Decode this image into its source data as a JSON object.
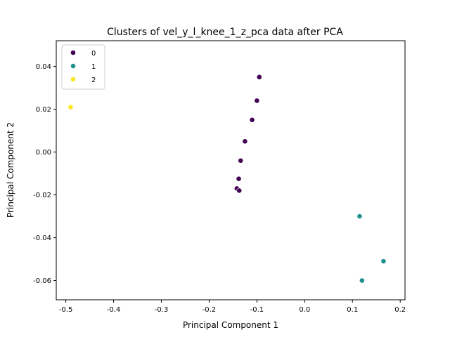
{
  "chart_data": {
    "type": "scatter",
    "title": "Clusters of vel_y_l_knee_1_z_pca data after PCA",
    "xlabel": "Principal Component 1",
    "ylabel": "Principal Component 2",
    "xlim": [
      -0.52,
      0.21
    ],
    "ylim": [
      -0.069,
      0.052
    ],
    "xticks": [
      "-0.5",
      "-0.4",
      "-0.3",
      "-0.2",
      "-0.1",
      "0.0",
      "0.1",
      "0.2"
    ],
    "xtick_values": [
      -0.5,
      -0.4,
      -0.3,
      -0.2,
      -0.1,
      0.0,
      0.1,
      0.2
    ],
    "yticks": [
      "-0.06",
      "-0.04",
      "-0.02",
      "0.00",
      "0.02",
      "0.04"
    ],
    "ytick_values": [
      -0.06,
      -0.04,
      -0.02,
      0.0,
      0.02,
      0.04
    ],
    "legend": {
      "position": "upper-left",
      "entries": [
        "0",
        "1",
        "2"
      ]
    },
    "grid": false,
    "colors": {
      "0": "#440154",
      "1": "#21918c",
      "2": "#fde725"
    },
    "series": [
      {
        "name": "0",
        "points": [
          [
            -0.095,
            0.035
          ],
          [
            -0.1,
            0.024
          ],
          [
            -0.11,
            0.015
          ],
          [
            -0.125,
            0.005
          ],
          [
            -0.134,
            -0.004
          ],
          [
            -0.138,
            -0.0125
          ],
          [
            -0.142,
            -0.017
          ],
          [
            -0.137,
            -0.018
          ]
        ]
      },
      {
        "name": "1",
        "points": [
          [
            0.165,
            -0.051
          ],
          [
            0.115,
            -0.03
          ],
          [
            0.12,
            -0.06
          ]
        ]
      },
      {
        "name": "2",
        "points": [
          [
            -0.49,
            0.021
          ]
        ]
      }
    ]
  }
}
